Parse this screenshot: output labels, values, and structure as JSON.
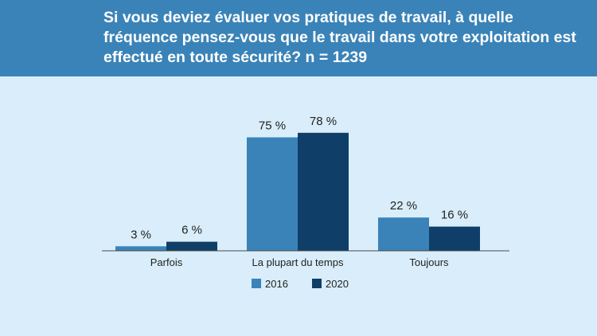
{
  "title": "Si vous deviez évaluer vos pratiques de travail, à quelle fréquence pensez-vous que le travail dans votre exploitation est effectué en toute sécurité? n = 1239",
  "colors": {
    "header_bg": "#3a83b8",
    "page_bg": "#d9eefa",
    "series_2016": "#3a83b8",
    "series_2020": "#0f3e68"
  },
  "chart_data": {
    "type": "bar",
    "title": "Si vous deviez évaluer vos pratiques de travail, à quelle fréquence pensez-vous que le travail dans votre exploitation est effectué en toute sécurité? n = 1239",
    "categories": [
      "Parfois",
      "La plupart du temps",
      "Toujours"
    ],
    "series": [
      {
        "name": "2016",
        "values": [
          3,
          75,
          22
        ],
        "labels": [
          "3 %",
          "75 %",
          "22 %"
        ],
        "color": "#3a83b8"
      },
      {
        "name": "2020",
        "values": [
          6,
          78,
          16
        ],
        "labels": [
          "6 %",
          "78 %",
          "16 %"
        ],
        "color": "#0f3e68"
      }
    ],
    "xlabel": "",
    "ylabel": "",
    "ylim": [
      0,
      100
    ],
    "grid": false,
    "legend": "bottom-center"
  }
}
